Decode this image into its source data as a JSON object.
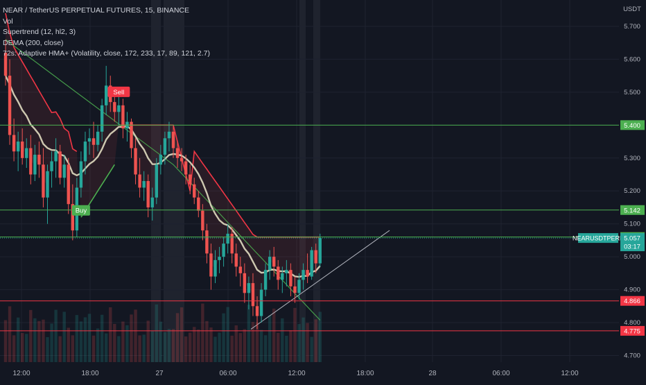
{
  "header": {
    "title": "NEAR / TetherUS PERPETUAL FUTURES, 15, BINANCE",
    "indicators": [
      "Vol",
      "Supertrend (12, hl2, 3)",
      "DEMA (200, close)",
      "72s: Adaptive HMA+ (Volatility, close, 172, 233, 17, 89, 121, 2.7)"
    ]
  },
  "axis": {
    "currency": "USDT"
  },
  "chart_data": {
    "type": "candlestick",
    "title": "NEAR / TetherUS PERPETUAL FUTURES, 15, BINANCE",
    "ylim": [
      4.68,
      5.78
    ],
    "yticks": [
      4.7,
      4.8,
      4.9,
      5.0,
      5.1,
      5.2,
      5.3,
      5.5,
      5.6,
      5.7
    ],
    "ytick_labels": [
      "4.700",
      "4.800",
      "4.900",
      "5.000",
      "5.100",
      "5.200",
      "5.300",
      "5.500",
      "5.600",
      "5.700"
    ],
    "xtick_labels": [
      "12:00",
      "18:00",
      "27",
      "06:00",
      "12:00",
      "18:00",
      "28",
      "06:00",
      "12:00"
    ],
    "horizontal_levels": [
      {
        "value": 5.4,
        "label": "5.400",
        "color": "#4caf50"
      },
      {
        "value": 5.142,
        "label": "5.142",
        "color": "#4caf50"
      },
      {
        "value": 5.06,
        "label": "5.060",
        "color": "#4caf50"
      },
      {
        "value": 4.866,
        "label": "4.866",
        "color": "#f23645"
      },
      {
        "value": 4.775,
        "label": "4.775",
        "color": "#f23645"
      }
    ],
    "last_price": {
      "symbol": "NEARUSDTPERP",
      "value": "5.057",
      "countdown": "03:17",
      "color": "#26a69a"
    },
    "signals": [
      {
        "label": "Sell",
        "index": 27,
        "price": 5.5,
        "color": "#f23645"
      },
      {
        "label": "Buy",
        "index": 18,
        "price": 5.14,
        "color": "#4caf50"
      }
    ],
    "colors": {
      "up": "#26a69a",
      "down": "#ef5350",
      "supertrend_up": "#4caf50",
      "supertrend_down": "#f23645",
      "dema": "#4caf50",
      "ahma": "#e0dcc0"
    },
    "candles": [
      {
        "o": 5.62,
        "h": 5.66,
        "l": 5.52,
        "c": 5.55
      },
      {
        "o": 5.55,
        "h": 5.6,
        "l": 5.34,
        "c": 5.37
      },
      {
        "o": 5.37,
        "h": 5.42,
        "l": 5.29,
        "c": 5.32
      },
      {
        "o": 5.32,
        "h": 5.38,
        "l": 5.26,
        "c": 5.35
      },
      {
        "o": 5.35,
        "h": 5.39,
        "l": 5.28,
        "c": 5.3
      },
      {
        "o": 5.3,
        "h": 5.36,
        "l": 5.27,
        "c": 5.33
      },
      {
        "o": 5.33,
        "h": 5.37,
        "l": 5.22,
        "c": 5.25
      },
      {
        "o": 5.25,
        "h": 5.34,
        "l": 5.23,
        "c": 5.31
      },
      {
        "o": 5.31,
        "h": 5.35,
        "l": 5.24,
        "c": 5.28
      },
      {
        "o": 5.28,
        "h": 5.33,
        "l": 5.15,
        "c": 5.18
      },
      {
        "o": 5.18,
        "h": 5.28,
        "l": 5.1,
        "c": 5.26
      },
      {
        "o": 5.26,
        "h": 5.32,
        "l": 5.21,
        "c": 5.29
      },
      {
        "o": 5.29,
        "h": 5.36,
        "l": 5.24,
        "c": 5.32
      },
      {
        "o": 5.32,
        "h": 5.34,
        "l": 5.22,
        "c": 5.24
      },
      {
        "o": 5.24,
        "h": 5.31,
        "l": 5.21,
        "c": 5.28
      },
      {
        "o": 5.28,
        "h": 5.3,
        "l": 5.13,
        "c": 5.16
      },
      {
        "o": 5.16,
        "h": 5.22,
        "l": 5.05,
        "c": 5.08
      },
      {
        "o": 5.08,
        "h": 5.24,
        "l": 5.06,
        "c": 5.21
      },
      {
        "o": 5.21,
        "h": 5.32,
        "l": 5.18,
        "c": 5.29
      },
      {
        "o": 5.29,
        "h": 5.38,
        "l": 5.25,
        "c": 5.35
      },
      {
        "o": 5.35,
        "h": 5.39,
        "l": 5.31,
        "c": 5.36
      },
      {
        "o": 5.36,
        "h": 5.41,
        "l": 5.3,
        "c": 5.34
      },
      {
        "o": 5.34,
        "h": 5.4,
        "l": 5.32,
        "c": 5.38
      },
      {
        "o": 5.38,
        "h": 5.48,
        "l": 5.35,
        "c": 5.46
      },
      {
        "o": 5.46,
        "h": 5.58,
        "l": 5.43,
        "c": 5.52
      },
      {
        "o": 5.52,
        "h": 5.55,
        "l": 5.44,
        "c": 5.47
      },
      {
        "o": 5.47,
        "h": 5.5,
        "l": 5.41,
        "c": 5.44
      },
      {
        "o": 5.44,
        "h": 5.49,
        "l": 5.4,
        "c": 5.46
      },
      {
        "o": 5.46,
        "h": 5.48,
        "l": 5.36,
        "c": 5.39
      },
      {
        "o": 5.39,
        "h": 5.44,
        "l": 5.35,
        "c": 5.41
      },
      {
        "o": 5.41,
        "h": 5.42,
        "l": 5.3,
        "c": 5.33
      },
      {
        "o": 5.33,
        "h": 5.36,
        "l": 5.22,
        "c": 5.25
      },
      {
        "o": 5.25,
        "h": 5.3,
        "l": 5.18,
        "c": 5.21
      },
      {
        "o": 5.21,
        "h": 5.26,
        "l": 5.17,
        "c": 5.23
      },
      {
        "o": 5.23,
        "h": 5.25,
        "l": 5.12,
        "c": 5.15
      },
      {
        "o": 5.15,
        "h": 5.21,
        "l": 5.11,
        "c": 5.18
      },
      {
        "o": 5.18,
        "h": 5.3,
        "l": 5.16,
        "c": 5.28
      },
      {
        "o": 5.28,
        "h": 5.34,
        "l": 5.25,
        "c": 5.31
      },
      {
        "o": 5.31,
        "h": 5.38,
        "l": 5.28,
        "c": 5.36
      },
      {
        "o": 5.36,
        "h": 5.41,
        "l": 5.32,
        "c": 5.38
      },
      {
        "o": 5.38,
        "h": 5.4,
        "l": 5.3,
        "c": 5.33
      },
      {
        "o": 5.33,
        "h": 5.35,
        "l": 5.27,
        "c": 5.3
      },
      {
        "o": 5.3,
        "h": 5.33,
        "l": 5.26,
        "c": 5.29
      },
      {
        "o": 5.29,
        "h": 5.31,
        "l": 5.22,
        "c": 5.25
      },
      {
        "o": 5.25,
        "h": 5.28,
        "l": 5.19,
        "c": 5.22
      },
      {
        "o": 5.22,
        "h": 5.24,
        "l": 5.16,
        "c": 5.18
      },
      {
        "o": 5.18,
        "h": 5.2,
        "l": 5.12,
        "c": 5.14
      },
      {
        "o": 5.14,
        "h": 5.16,
        "l": 5.05,
        "c": 5.08
      },
      {
        "o": 5.08,
        "h": 5.1,
        "l": 4.98,
        "c": 5.01
      },
      {
        "o": 5.01,
        "h": 5.04,
        "l": 4.9,
        "c": 4.94
      },
      {
        "o": 4.94,
        "h": 5.02,
        "l": 4.92,
        "c": 4.99
      },
      {
        "o": 4.99,
        "h": 5.03,
        "l": 4.95,
        "c": 5.0
      },
      {
        "o": 5.0,
        "h": 5.06,
        "l": 4.97,
        "c": 5.04
      },
      {
        "o": 5.04,
        "h": 5.1,
        "l": 5.01,
        "c": 5.07
      },
      {
        "o": 5.07,
        "h": 5.09,
        "l": 4.98,
        "c": 5.01
      },
      {
        "o": 5.01,
        "h": 5.04,
        "l": 4.94,
        "c": 4.97
      },
      {
        "o": 4.97,
        "h": 5.0,
        "l": 4.91,
        "c": 4.95
      },
      {
        "o": 4.95,
        "h": 4.98,
        "l": 4.86,
        "c": 4.89
      },
      {
        "o": 4.89,
        "h": 4.94,
        "l": 4.84,
        "c": 4.92
      },
      {
        "o": 4.92,
        "h": 4.95,
        "l": 4.82,
        "c": 4.85
      },
      {
        "o": 4.85,
        "h": 4.88,
        "l": 4.78,
        "c": 4.82
      },
      {
        "o": 4.82,
        "h": 4.92,
        "l": 4.8,
        "c": 4.9
      },
      {
        "o": 4.9,
        "h": 4.98,
        "l": 4.88,
        "c": 4.96
      },
      {
        "o": 4.96,
        "h": 5.02,
        "l": 4.93,
        "c": 5.0
      },
      {
        "o": 5.0,
        "h": 5.03,
        "l": 4.94,
        "c": 4.97
      },
      {
        "o": 4.97,
        "h": 4.99,
        "l": 4.9,
        "c": 4.93
      },
      {
        "o": 4.93,
        "h": 4.97,
        "l": 4.89,
        "c": 4.95
      },
      {
        "o": 4.95,
        "h": 4.99,
        "l": 4.91,
        "c": 4.96
      },
      {
        "o": 4.96,
        "h": 4.98,
        "l": 4.88,
        "c": 4.91
      },
      {
        "o": 4.91,
        "h": 4.94,
        "l": 4.86,
        "c": 4.89
      },
      {
        "o": 4.89,
        "h": 4.95,
        "l": 4.87,
        "c": 4.93
      },
      {
        "o": 4.93,
        "h": 4.98,
        "l": 4.9,
        "c": 4.96
      },
      {
        "o": 4.96,
        "h": 5.01,
        "l": 4.92,
        "c": 4.94
      },
      {
        "o": 4.94,
        "h": 5.03,
        "l": 4.93,
        "c": 5.02
      },
      {
        "o": 5.02,
        "h": 5.04,
        "l": 4.95,
        "c": 4.98
      },
      {
        "o": 4.98,
        "h": 5.07,
        "l": 4.97,
        "c": 5.057
      }
    ]
  }
}
